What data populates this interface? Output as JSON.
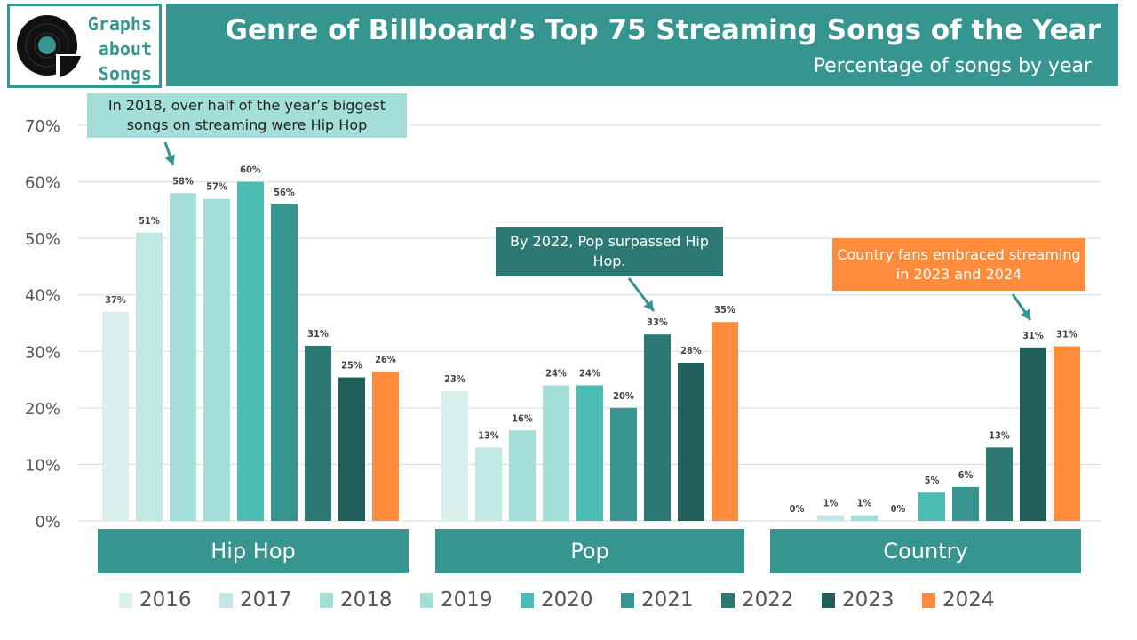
{
  "logo": {
    "lines": [
      "Graphs",
      "about",
      "Songs"
    ]
  },
  "header": {
    "title": "Genre of Billboard’s Top 75 Streaming Songs of the Year",
    "subtitle": "Percentage of songs by year"
  },
  "annotations": [
    {
      "text": "In 2018, over half of the year’s biggest songs on streaming were Hip Hop",
      "color": "#a3dfd8"
    },
    {
      "text": "By 2022, Pop surpassed Hip Hop.",
      "color": "#2c7872"
    },
    {
      "text": "Country fans embraced streaming in 2023 and 2024",
      "color": "#ff8c3c"
    }
  ],
  "chart_data": {
    "type": "bar",
    "title": "Genre of Billboard’s Top 75 Streaming Songs of the Year",
    "subtitle": "Percentage of songs by year",
    "categories": [
      "Hip Hop",
      "Pop",
      "Country"
    ],
    "ylim": [
      0,
      70
    ],
    "yticks": [
      "0%",
      "10%",
      "20%",
      "30%",
      "40%",
      "50%",
      "60%",
      "70%"
    ],
    "grid": true,
    "legend_position": "bottom",
    "series": [
      {
        "name": "2016",
        "color": "#d9f0ed",
        "values": [
          37,
          23,
          0
        ],
        "labels": [
          "37%",
          "23%",
          "0%"
        ]
      },
      {
        "name": "2017",
        "color": "#c1e8e3",
        "values": [
          51,
          13,
          1
        ],
        "labels": [
          "51%",
          "13%",
          "1%"
        ]
      },
      {
        "name": "2018",
        "color": "#a3dfd8",
        "values": [
          58,
          16,
          1
        ],
        "labels": [
          "58%",
          "16%",
          "1%"
        ]
      },
      {
        "name": "2019",
        "color": "#a3dfd8",
        "values": [
          57,
          24,
          0
        ],
        "labels": [
          "57%",
          "24%",
          "0%"
        ]
      },
      {
        "name": "2020",
        "color": "#4bbdb3",
        "values": [
          60,
          24,
          5
        ],
        "labels": [
          "60%",
          "24%",
          "5%"
        ]
      },
      {
        "name": "2021",
        "color": "#36958e",
        "values": [
          56,
          20,
          6
        ],
        "labels": [
          "56%",
          "20%",
          "6%"
        ]
      },
      {
        "name": "2022",
        "color": "#2c7872",
        "values": [
          31,
          33,
          13
        ],
        "labels": [
          "31%",
          "33%",
          "13%"
        ]
      },
      {
        "name": "2023",
        "color": "#205f59",
        "values": [
          25.4,
          28,
          30.7
        ],
        "labels": [
          "25%",
          "28%",
          "31%"
        ]
      },
      {
        "name": "2024",
        "color": "#ff8c3c",
        "values": [
          26.4,
          35.2,
          30.9
        ],
        "labels": [
          "26%",
          "35%",
          "31%"
        ]
      }
    ]
  }
}
